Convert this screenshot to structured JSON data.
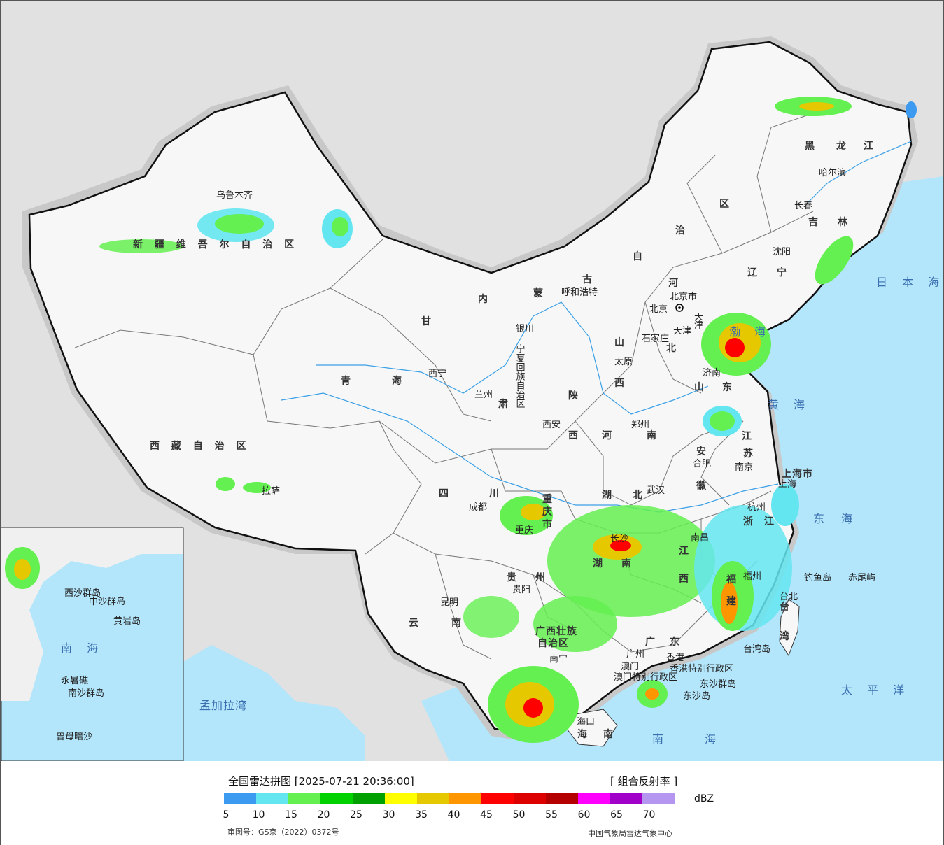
{
  "title": "全国雷达拼图 [2025-07-21 20:36:00]",
  "product": "[ 组合反射率 ]",
  "unit": "dBZ",
  "legend_colors": [
    "#3c9bf0",
    "#64e6f0",
    "#64f050",
    "#00d200",
    "#00a000",
    "#ffff00",
    "#e6c800",
    "#ff9600",
    "#ff0000",
    "#dc0000",
    "#b40000",
    "#ff00ff",
    "#a000c8",
    "#b496f0"
  ],
  "legend_ticks": [
    "5",
    "10",
    "15",
    "20",
    "25",
    "30",
    "35",
    "40",
    "45",
    "50",
    "55",
    "60",
    "65",
    "70"
  ],
  "review_number": "审图号：GS京（2022）0372号",
  "producer": "中国气象局雷达气象中心",
  "provinces": [
    "新 疆 维 吾 尔 自 治 区",
    "西 藏 自 治 区",
    "青",
    "海",
    "甘",
    "肃",
    "四",
    "川",
    "云",
    "南",
    "内",
    "蒙",
    "古",
    "自",
    "治",
    "区",
    "黑",
    "龙",
    "江",
    "吉",
    "林",
    "辽",
    "宁",
    "河",
    "北",
    "山",
    "西",
    "山",
    "东",
    "陕",
    "西",
    "河",
    "南",
    "湖",
    "北",
    "湖",
    "南",
    "江",
    "西",
    "安",
    "徽",
    "江",
    "苏",
    "浙",
    "江",
    "福",
    "建",
    "广",
    "东",
    "广西壮族",
    "自治区",
    "贵",
    "州",
    "重",
    "庆",
    "市",
    "宁夏回族自治区",
    "台",
    "湾",
    "上海市",
    "天",
    "津",
    "北京市",
    "香港特别行政区",
    "澳门特别行政区",
    "海",
    "南"
  ],
  "cities": [
    "乌鲁木齐",
    "拉萨",
    "西宁",
    "兰州",
    "银川",
    "成都",
    "重庆",
    "昆明",
    "贵阳",
    "南宁",
    "呼和浩特",
    "西安",
    "郑州",
    "太原",
    "石家庄",
    "北京",
    "天津",
    "济南",
    "南京",
    "合肥",
    "上海",
    "杭州",
    "武汉",
    "长沙",
    "南昌",
    "福州",
    "广州",
    "香港",
    "澳门",
    "海口",
    "台北",
    "哈尔滨",
    "长春",
    "沈阳",
    "赤尾屿",
    "钓鱼岛",
    "台湾岛",
    "东沙群岛",
    "东沙岛"
  ],
  "seas": [
    "渤",
    "海",
    "黄",
    "海",
    "东",
    "海",
    "南",
    "海",
    "日 本 海",
    "太 平 洋",
    "孟加拉湾",
    "南 海"
  ],
  "inset_labels": [
    "西沙群岛",
    "中沙群岛",
    "黄岩岛",
    "南沙群岛",
    "永暑礁",
    "曾母暗沙"
  ]
}
